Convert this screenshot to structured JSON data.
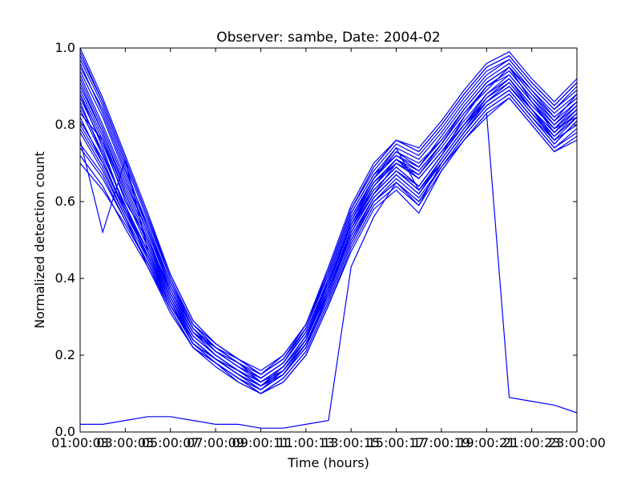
{
  "chart_data": {
    "type": "line",
    "title": "Observer: sambe, Date: 2004-02",
    "xlabel": "Time (hours)",
    "ylabel": "Normalized detection count",
    "xlim": [
      1,
      23
    ],
    "ylim": [
      0.0,
      1.0
    ],
    "x_tick_labels": [
      "01:00:03",
      "03:00:05",
      "05:00:07",
      "07:00:09",
      "09:00:11",
      "11:00:13",
      "13:00:15",
      "15:00:17",
      "17:00:19",
      "19:00:21",
      "21:00:23",
      "23:00:00"
    ],
    "y_tick_labels": [
      "0.0",
      "0.2",
      "0.4",
      "0.6",
      "0.8",
      "1.0"
    ],
    "grid": false,
    "line_color": "#0000ff",
    "x": [
      1,
      2,
      3,
      4,
      5,
      6,
      7,
      8,
      9,
      10,
      11,
      12,
      13,
      14,
      15,
      16,
      17,
      18,
      19,
      20,
      21,
      22,
      23
    ],
    "series": [
      {
        "values": [
          0.93,
          0.8,
          0.66,
          0.52,
          0.38,
          0.27,
          0.21,
          0.17,
          0.14,
          0.18,
          0.26,
          0.39,
          0.55,
          0.66,
          0.73,
          0.7,
          0.76,
          0.84,
          0.91,
          0.95,
          0.88,
          0.81,
          0.86
        ]
      },
      {
        "values": [
          0.88,
          0.74,
          0.58,
          0.47,
          0.35,
          0.24,
          0.19,
          0.15,
          0.12,
          0.16,
          0.23,
          0.35,
          0.5,
          0.6,
          0.65,
          0.59,
          0.7,
          0.78,
          0.86,
          0.9,
          0.84,
          0.76,
          0.8
        ]
      },
      {
        "values": [
          0.79,
          0.69,
          0.56,
          0.43,
          0.31,
          0.22,
          0.18,
          0.14,
          0.11,
          0.15,
          0.22,
          0.37,
          0.53,
          0.64,
          0.71,
          0.66,
          0.73,
          0.8,
          0.88,
          0.93,
          0.86,
          0.78,
          0.84
        ]
      },
      {
        "values": [
          0.98,
          0.86,
          0.71,
          0.56,
          0.4,
          0.28,
          0.23,
          0.19,
          0.15,
          0.19,
          0.28,
          0.42,
          0.58,
          0.68,
          0.75,
          0.72,
          0.79,
          0.87,
          0.94,
          0.97,
          0.9,
          0.84,
          0.89
        ]
      },
      {
        "values": [
          0.7,
          0.63,
          0.54,
          0.44,
          0.33,
          0.23,
          0.18,
          0.13,
          0.1,
          0.13,
          0.2,
          0.33,
          0.47,
          0.58,
          0.63,
          0.57,
          0.68,
          0.76,
          0.82,
          0.87,
          0.8,
          0.73,
          0.77
        ]
      },
      {
        "values": [
          0.83,
          0.76,
          0.6,
          0.5,
          0.37,
          0.26,
          0.2,
          0.16,
          0.12,
          0.17,
          0.25,
          0.38,
          0.54,
          0.65,
          0.71,
          0.68,
          0.75,
          0.83,
          0.89,
          0.95,
          0.86,
          0.8,
          0.85
        ]
      },
      {
        "values": [
          0.76,
          0.52,
          0.71,
          0.47,
          0.34,
          0.23,
          0.19,
          0.15,
          0.11,
          0.16,
          0.24,
          0.4,
          0.56,
          0.66,
          0.74,
          0.63,
          0.71,
          0.79,
          0.87,
          0.92,
          0.85,
          0.79,
          0.82
        ]
      },
      {
        "values": [
          0.91,
          0.78,
          0.64,
          0.51,
          0.36,
          0.26,
          0.22,
          0.18,
          0.13,
          0.17,
          0.25,
          0.39,
          0.54,
          0.63,
          0.69,
          0.64,
          0.72,
          0.82,
          0.9,
          0.94,
          0.87,
          0.81,
          0.88
        ]
      },
      {
        "values": [
          0.86,
          0.72,
          0.59,
          0.45,
          0.33,
          0.24,
          0.19,
          0.16,
          0.12,
          0.15,
          0.23,
          0.36,
          0.52,
          0.62,
          0.7,
          0.66,
          0.73,
          0.8,
          0.86,
          0.91,
          0.84,
          0.77,
          0.83
        ]
      },
      {
        "values": [
          0.95,
          0.84,
          0.69,
          0.53,
          0.39,
          0.27,
          0.22,
          0.18,
          0.14,
          0.18,
          0.27,
          0.41,
          0.57,
          0.67,
          0.72,
          0.69,
          0.77,
          0.85,
          0.92,
          0.96,
          0.89,
          0.82,
          0.87
        ]
      },
      {
        "values": [
          0.81,
          0.71,
          0.57,
          0.46,
          0.34,
          0.24,
          0.19,
          0.15,
          0.12,
          0.16,
          0.24,
          0.37,
          0.53,
          0.62,
          0.68,
          0.63,
          0.7,
          0.78,
          0.85,
          0.89,
          0.82,
          0.75,
          0.81
        ]
      },
      {
        "values": [
          0.89,
          0.77,
          0.62,
          0.49,
          0.36,
          0.25,
          0.2,
          0.16,
          0.13,
          0.17,
          0.25,
          0.38,
          0.55,
          0.65,
          0.7,
          0.67,
          0.74,
          0.82,
          0.9,
          0.93,
          0.86,
          0.79,
          0.84
        ]
      },
      {
        "values": [
          0.74,
          0.66,
          0.55,
          0.44,
          0.32,
          0.22,
          0.18,
          0.14,
          0.1,
          0.14,
          0.21,
          0.34,
          0.49,
          0.6,
          0.66,
          0.61,
          0.69,
          0.77,
          0.84,
          0.88,
          0.81,
          0.74,
          0.78
        ]
      },
      {
        "values": [
          0.97,
          0.85,
          0.7,
          0.55,
          0.4,
          0.28,
          0.22,
          0.19,
          0.15,
          0.19,
          0.27,
          0.42,
          0.58,
          0.69,
          0.76,
          0.73,
          0.8,
          0.88,
          0.95,
          0.98,
          0.91,
          0.85,
          0.91
        ]
      },
      {
        "values": [
          0.85,
          0.73,
          0.58,
          0.46,
          0.33,
          0.23,
          0.19,
          0.15,
          0.12,
          0.16,
          0.23,
          0.36,
          0.51,
          0.61,
          0.67,
          0.62,
          0.71,
          0.79,
          0.86,
          0.9,
          0.83,
          0.76,
          0.82
        ]
      },
      {
        "values": [
          0.92,
          0.79,
          0.65,
          0.52,
          0.37,
          0.27,
          0.21,
          0.17,
          0.14,
          0.18,
          0.26,
          0.4,
          0.56,
          0.66,
          0.73,
          0.69,
          0.76,
          0.84,
          0.91,
          0.95,
          0.88,
          0.82,
          0.87
        ]
      },
      {
        "values": [
          0.78,
          0.68,
          0.56,
          0.45,
          0.33,
          0.23,
          0.18,
          0.14,
          0.11,
          0.15,
          0.22,
          0.35,
          0.5,
          0.61,
          0.67,
          0.62,
          0.7,
          0.78,
          0.85,
          0.89,
          0.82,
          0.76,
          0.8
        ]
      },
      {
        "values": [
          0.94,
          0.82,
          0.67,
          0.53,
          0.38,
          0.27,
          0.21,
          0.18,
          0.14,
          0.18,
          0.26,
          0.4,
          0.56,
          0.66,
          0.72,
          0.68,
          0.75,
          0.84,
          0.91,
          0.95,
          0.89,
          0.83,
          0.88
        ]
      },
      {
        "values": [
          0.87,
          0.75,
          0.61,
          0.48,
          0.35,
          0.25,
          0.2,
          0.16,
          0.13,
          0.16,
          0.24,
          0.37,
          0.53,
          0.63,
          0.69,
          0.64,
          0.72,
          0.8,
          0.87,
          0.91,
          0.84,
          0.78,
          0.83
        ]
      },
      {
        "values": [
          0.82,
          0.7,
          0.57,
          0.46,
          0.34,
          0.24,
          0.19,
          0.15,
          0.12,
          0.15,
          0.23,
          0.36,
          0.52,
          0.62,
          0.68,
          0.63,
          0.71,
          0.79,
          0.86,
          0.9,
          0.83,
          0.77,
          0.82
        ]
      },
      {
        "values": [
          1.0,
          0.87,
          0.72,
          0.57,
          0.41,
          0.29,
          0.23,
          0.19,
          0.16,
          0.2,
          0.28,
          0.43,
          0.59,
          0.7,
          0.76,
          0.74,
          0.81,
          0.89,
          0.96,
          0.99,
          0.92,
          0.86,
          0.92
        ]
      },
      {
        "values": [
          0.72,
          0.64,
          0.53,
          0.43,
          0.32,
          0.22,
          0.17,
          0.13,
          0.1,
          0.13,
          0.2,
          0.33,
          0.48,
          0.59,
          0.64,
          0.59,
          0.68,
          0.76,
          0.83,
          0.87,
          0.8,
          0.73,
          0.76
        ]
      },
      {
        "values": [
          0.9,
          0.78,
          0.63,
          0.5,
          0.36,
          0.26,
          0.21,
          0.17,
          0.13,
          0.17,
          0.25,
          0.39,
          0.55,
          0.65,
          0.71,
          0.67,
          0.75,
          0.83,
          0.9,
          0.94,
          0.87,
          0.8,
          0.86
        ]
      },
      {
        "values": [
          0.84,
          0.72,
          0.59,
          0.47,
          0.35,
          0.24,
          0.19,
          0.16,
          0.12,
          0.16,
          0.24,
          0.37,
          0.52,
          0.62,
          0.68,
          0.64,
          0.72,
          0.8,
          0.87,
          0.92,
          0.84,
          0.78,
          0.84
        ]
      },
      {
        "values": [
          0.96,
          0.83,
          0.68,
          0.54,
          0.39,
          0.28,
          0.22,
          0.18,
          0.15,
          0.19,
          0.27,
          0.41,
          0.57,
          0.67,
          0.74,
          0.71,
          0.78,
          0.86,
          0.93,
          0.97,
          0.9,
          0.84,
          0.9
        ]
      },
      {
        "values": [
          0.8,
          0.7,
          0.58,
          0.45,
          0.33,
          0.23,
          0.19,
          0.15,
          0.11,
          0.15,
          0.23,
          0.36,
          0.51,
          0.61,
          0.67,
          0.62,
          0.7,
          0.78,
          0.85,
          0.89,
          0.82,
          0.75,
          0.81
        ]
      },
      {
        "values": [
          0.88,
          0.76,
          0.62,
          0.49,
          0.35,
          0.25,
          0.2,
          0.16,
          0.13,
          0.17,
          0.24,
          0.38,
          0.54,
          0.64,
          0.7,
          0.66,
          0.73,
          0.81,
          0.88,
          0.92,
          0.85,
          0.79,
          0.85
        ]
      },
      {
        "values": [
          0.75,
          0.67,
          0.55,
          0.44,
          0.32,
          0.22,
          0.18,
          0.14,
          0.1,
          0.14,
          0.21,
          0.34,
          0.49,
          0.6,
          0.65,
          0.6,
          0.69,
          0.77,
          0.84,
          0.88,
          0.81,
          0.74,
          0.79
        ]
      },
      {
        "values": [
          0.99,
          0.86,
          0.71,
          0.56,
          0.41,
          0.29,
          0.23,
          0.19,
          0.15,
          0.2,
          0.28,
          0.42,
          0.58,
          0.69,
          0.76,
          0.73,
          0.8,
          0.88,
          0.95,
          0.98,
          0.91,
          0.85,
          0.91
        ]
      },
      {
        "values": [
          0.02,
          0.02,
          0.03,
          0.04,
          0.04,
          0.03,
          0.02,
          0.02,
          0.01,
          0.01,
          0.02,
          0.03,
          0.43,
          0.56,
          0.65,
          0.6,
          0.69,
          0.76,
          0.83,
          0.09,
          0.08,
          0.07,
          0.05
        ]
      }
    ]
  }
}
